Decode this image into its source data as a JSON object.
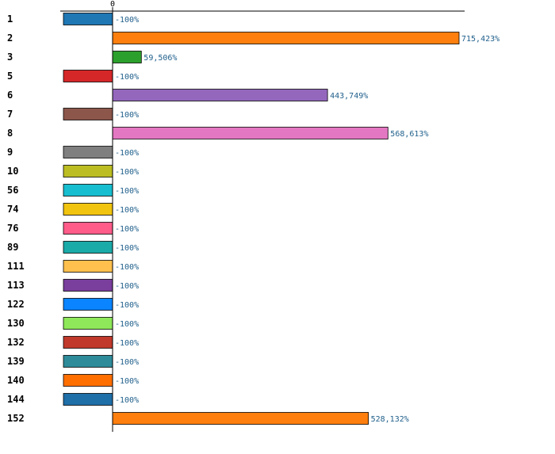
{
  "chart_data": {
    "type": "bar",
    "orientation": "horizontal",
    "title": "",
    "xlabel": "",
    "ylabel": "",
    "x_tick_labels": [
      "0"
    ],
    "grid": false,
    "legend": "none",
    "categories": [
      "1",
      "2",
      "3",
      "5",
      "6",
      "7",
      "8",
      "9",
      "10",
      "56",
      "74",
      "76",
      "89",
      "111",
      "113",
      "122",
      "130",
      "132",
      "139",
      "140",
      "144",
      "152"
    ],
    "values": [
      -100,
      715423,
      59506,
      -100,
      443749,
      -100,
      568613,
      -100,
      -100,
      -100,
      -100,
      -100,
      -100,
      -100,
      -100,
      -100,
      -100,
      -100,
      -100,
      -100,
      -100,
      528132
    ],
    "value_labels": [
      "-100%",
      "715,423%",
      "59,506%",
      "-100%",
      "443,749%",
      "-100%",
      "568,613%",
      "-100%",
      "-100%",
      "-100%",
      "-100%",
      "-100%",
      "-100%",
      "-100%",
      "-100%",
      "-100%",
      "-100%",
      "-100%",
      "-100%",
      "-100%",
      "-100%",
      "528,132%"
    ],
    "colors": [
      "#1f77b4",
      "#ff7f0e",
      "#2ca02c",
      "#d62728",
      "#9467bd",
      "#8c564b",
      "#e377c2",
      "#7f7f7f",
      "#bcbd22",
      "#17becf",
      "#f1c40f",
      "#ff5c8a",
      "#1aaaa8",
      "#ffc04d",
      "#7a3e9d",
      "#0a84ff",
      "#8ee85a",
      "#c0392b",
      "#2e8b9a",
      "#ff6f00",
      "#1f6fa8",
      "#ff7f0e"
    ],
    "value_label_color": "#1f5f8b"
  }
}
